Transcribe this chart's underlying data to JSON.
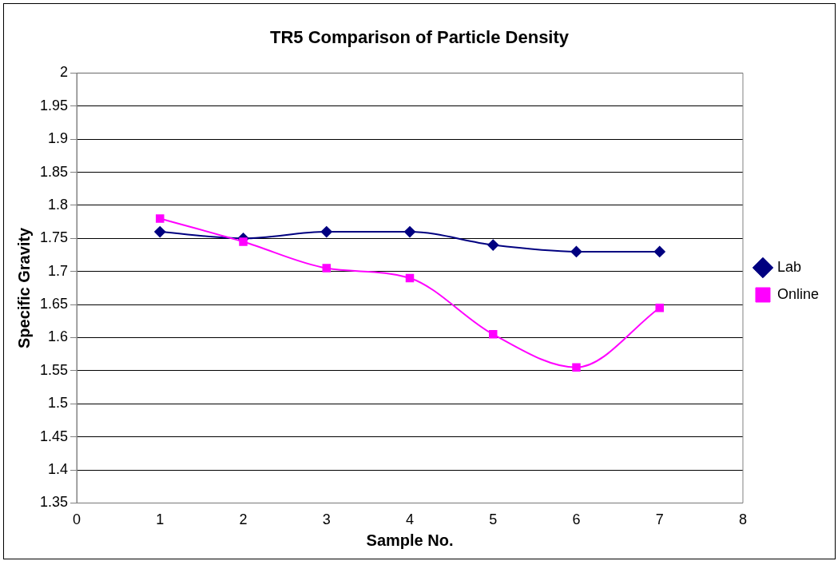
{
  "chart_data": {
    "type": "line",
    "title": "TR5 Comparison of Particle Density",
    "xlabel": "Sample No.",
    "ylabel": "Specific Gravity",
    "x": [
      1,
      2,
      3,
      4,
      5,
      6,
      7
    ],
    "series": [
      {
        "name": "Lab",
        "color": "#000080",
        "marker": "diamond",
        "values": [
          1.76,
          1.75,
          1.76,
          1.76,
          1.74,
          1.73,
          1.73
        ]
      },
      {
        "name": "Online",
        "color": "#ff00ff",
        "marker": "square",
        "values": [
          1.78,
          1.745,
          1.705,
          1.69,
          1.605,
          1.555,
          1.645
        ]
      }
    ],
    "xlim": [
      0,
      8
    ],
    "xticks": [
      0,
      1,
      2,
      3,
      4,
      5,
      6,
      7,
      8
    ],
    "ylim": [
      1.35,
      2
    ],
    "yticks": [
      1.35,
      1.4,
      1.45,
      1.5,
      1.55,
      1.6,
      1.65,
      1.7,
      1.75,
      1.8,
      1.85,
      1.9,
      1.95,
      2
    ],
    "grid": "y",
    "legend": "right"
  }
}
